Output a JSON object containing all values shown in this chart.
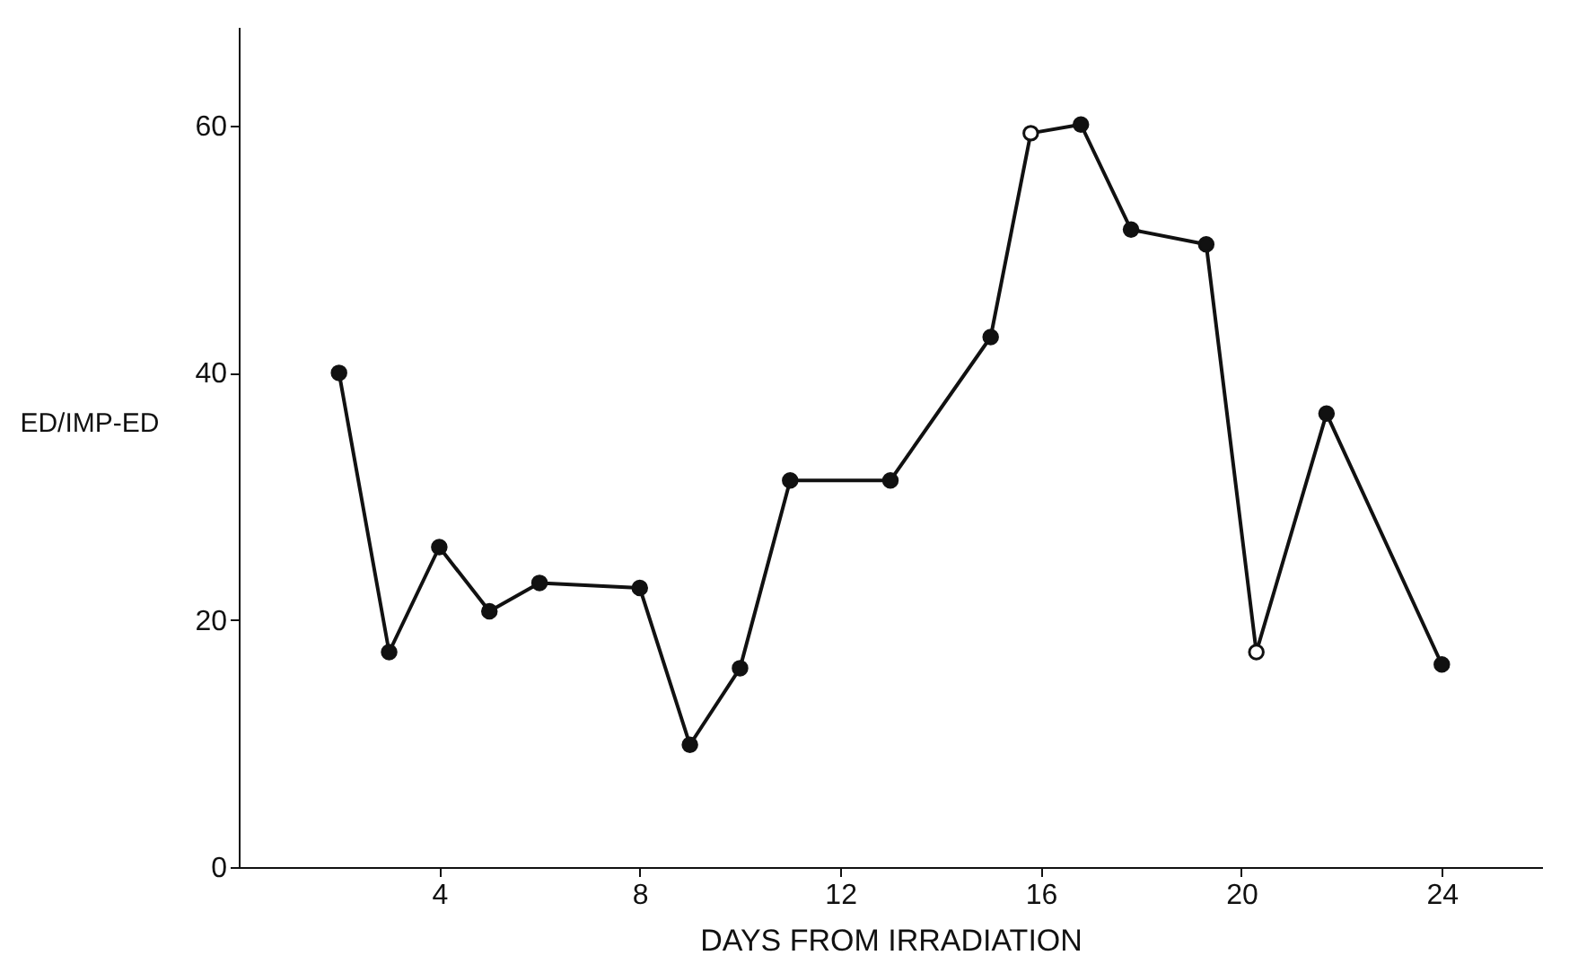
{
  "chart_data": {
    "type": "line",
    "xlabel": "DAYS FROM IRRADIATION",
    "ylabel": "ED/IMP-ED",
    "xlim": [
      0,
      26
    ],
    "xticks": [
      4,
      8,
      12,
      16,
      20,
      24
    ],
    "ylim": [
      0,
      68
    ],
    "yticks": [
      0,
      20,
      40,
      60
    ],
    "grid": false,
    "series": [
      {
        "color": "#111111",
        "line_style": "solid",
        "x": [
          2,
          3,
          4,
          5,
          6,
          8,
          9,
          10,
          11,
          13,
          15,
          15.8,
          16.8,
          17.8,
          19.3,
          20.3,
          21.7,
          24
        ],
        "values": [
          40,
          17.4,
          25.9,
          20.7,
          23,
          22.6,
          9.9,
          16.1,
          31.3,
          31.3,
          42.9,
          59.4,
          60.1,
          51.6,
          50.4,
          17.4,
          36.7,
          16.4
        ]
      },
      {
        "type": "scatter",
        "color": "#111111",
        "marker": "circle",
        "x": [
          2,
          3,
          4,
          5,
          6,
          8,
          9,
          10,
          11,
          13,
          15,
          16.8,
          17.8,
          19.3,
          21.7,
          24
        ],
        "values": [
          40,
          17.4,
          25.9,
          20.7,
          23,
          22.6,
          9.9,
          16.1,
          31.3,
          31.3,
          42.9,
          60.1,
          51.6,
          50.4,
          36.7,
          16.4
        ]
      },
      {
        "type": "scatter",
        "color": "#ffffff",
        "marker": "circle",
        "x": [
          15.8,
          20.3
        ],
        "values": [
          59.4,
          17.4
        ]
      }
    ]
  }
}
